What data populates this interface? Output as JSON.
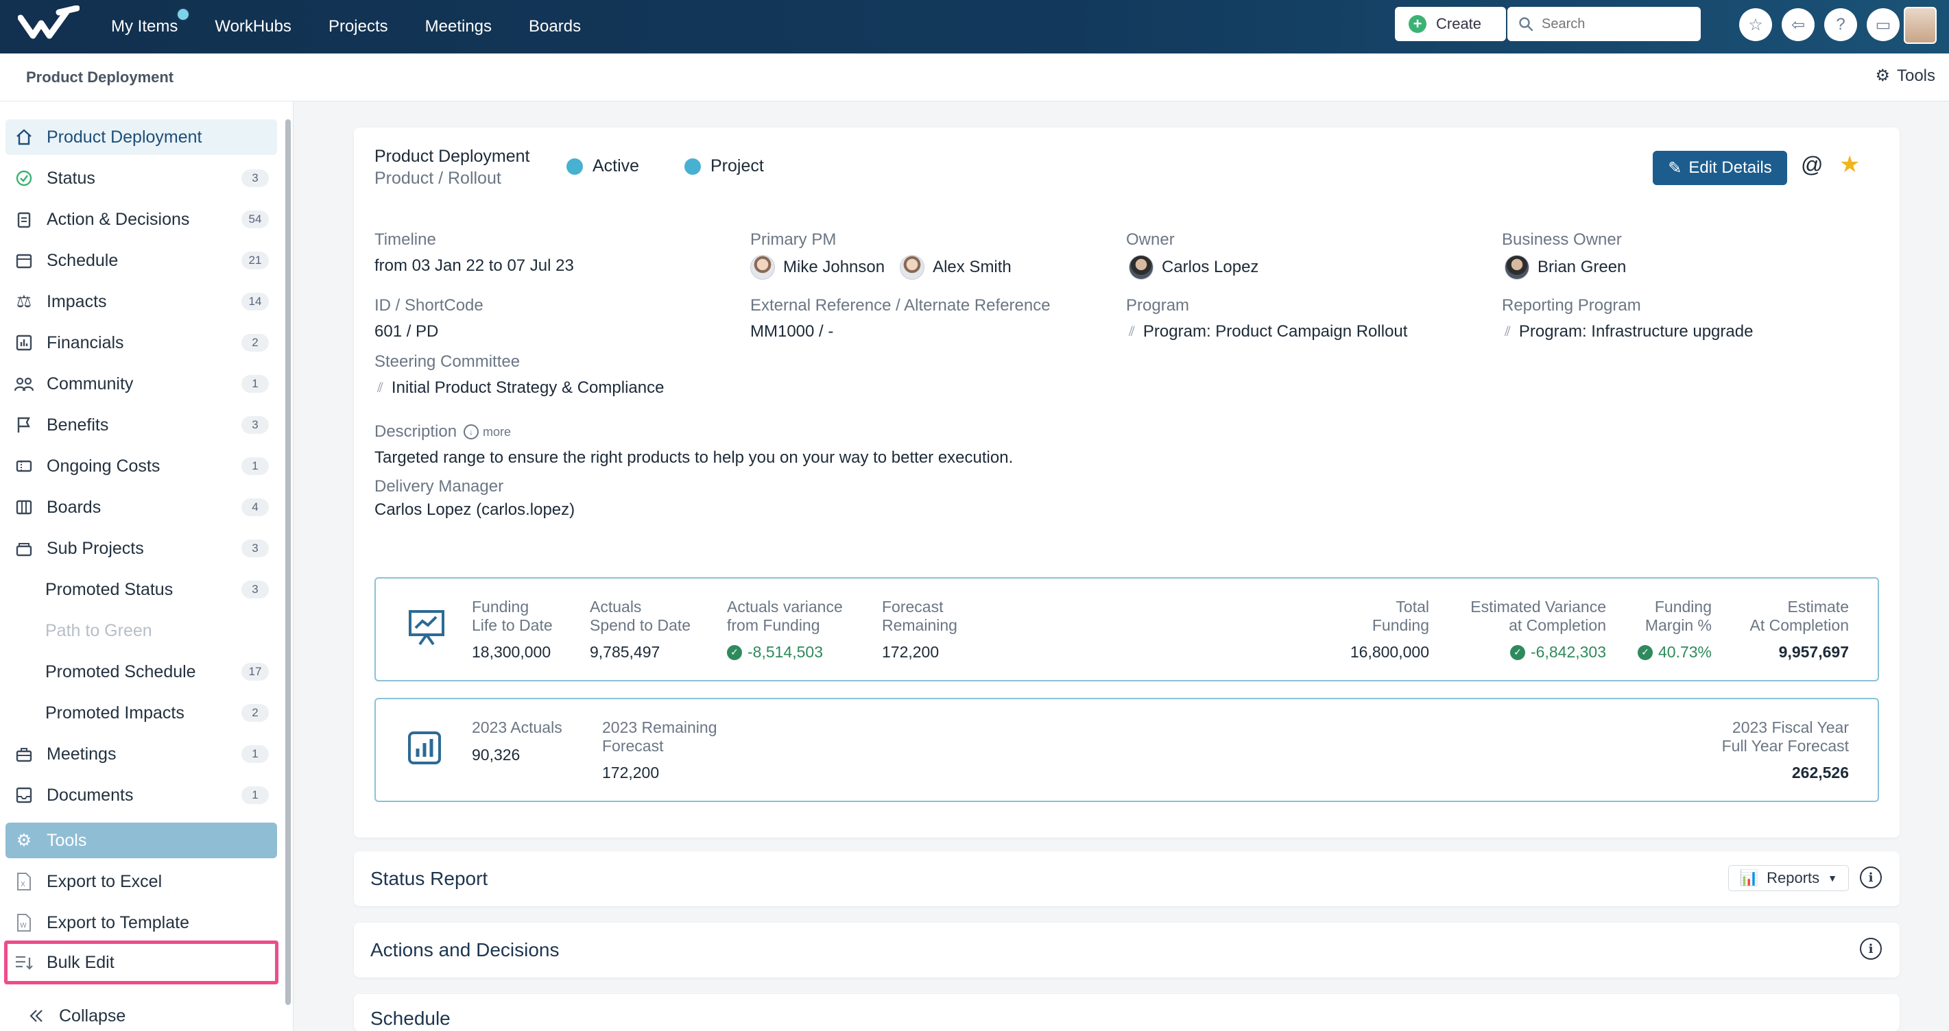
{
  "topbar": {
    "nav": [
      "My Items",
      "WorkHubs",
      "Projects",
      "Meetings",
      "Boards"
    ],
    "create_label": "Create",
    "search_placeholder": "Search"
  },
  "breadcrumb": "Product Deployment",
  "tools_label": "Tools",
  "sidebar": {
    "items": [
      {
        "label": "Product Deployment",
        "badge": ""
      },
      {
        "label": "Status",
        "badge": "3"
      },
      {
        "label": "Action & Decisions",
        "badge": "54"
      },
      {
        "label": "Schedule",
        "badge": "21"
      },
      {
        "label": "Impacts",
        "badge": "14"
      },
      {
        "label": "Financials",
        "badge": "2"
      },
      {
        "label": "Community",
        "badge": "1"
      },
      {
        "label": "Benefits",
        "badge": "3"
      },
      {
        "label": "Ongoing Costs",
        "badge": "1"
      },
      {
        "label": "Boards",
        "badge": "4"
      },
      {
        "label": "Sub Projects",
        "badge": "3"
      },
      {
        "label": "Promoted Status",
        "badge": "3"
      },
      {
        "label": "Path to Green",
        "badge": ""
      },
      {
        "label": "Promoted Schedule",
        "badge": "17"
      },
      {
        "label": "Promoted Impacts",
        "badge": "2"
      },
      {
        "label": "Meetings",
        "badge": "1"
      },
      {
        "label": "Documents",
        "badge": "1"
      }
    ],
    "tools": "Tools",
    "export_excel": "Export to Excel",
    "export_template": "Export to Template",
    "bulk_edit": "Bulk Edit",
    "collapse": "Collapse"
  },
  "project": {
    "title": "Product Deployment",
    "subtitle": "Product / Rollout",
    "status": "Active",
    "type": "Project",
    "edit_label": "Edit Details"
  },
  "fields": {
    "timeline_label": "Timeline",
    "timeline_value": "from 03 Jan 22 to 07 Jul 23",
    "pm_label": "Primary PM",
    "pm1": "Mike Johnson",
    "pm2": "Alex Smith",
    "owner_label": "Owner",
    "owner_value": "Carlos Lopez",
    "bo_label": "Business Owner",
    "bo_value": "Brian Green",
    "id_label": "ID / ShortCode",
    "id_value": "601 / PD",
    "ext_label": "External Reference / Alternate Reference",
    "ext_value": "MM1000 / -",
    "program_label": "Program",
    "program_value": "Program: Product Campaign Rollout",
    "rp_label": "Reporting Program",
    "rp_value": "Program: Infrastructure upgrade",
    "sc_label": "Steering Committee",
    "sc_value": "Initial Product Strategy & Compliance",
    "desc_label": "Description",
    "more_label": "more",
    "desc_value": "Targeted range to ensure the right products to help you on your way to better execution.",
    "dm_label": "Delivery Manager",
    "dm_value": "Carlos Lopez (carlos.lopez)"
  },
  "funding": {
    "c1_l1": "Funding",
    "c1_l2": "Life to Date",
    "c1_v": "18,300,000",
    "c2_l1": "Actuals",
    "c2_l2": "Spend to Date",
    "c2_v": "9,785,497",
    "c3_l1": "Actuals variance",
    "c3_l2": "from Funding",
    "c3_v": "-8,514,503",
    "c4_l1": "Forecast",
    "c4_l2": "Remaining",
    "c4_v": "172,200",
    "c5_l1": "Total",
    "c5_l2": "Funding",
    "c5_v": "16,800,000",
    "c6_l1": "Estimated Variance",
    "c6_l2": "at Completion",
    "c6_v": "-6,842,303",
    "c7_l1": "Funding",
    "c7_l2": "Margin %",
    "c7_v": "40.73%",
    "c8_l1": "Estimate",
    "c8_l2": "At Completion",
    "c8_v": "9,957,697"
  },
  "fiscal": {
    "a_label": "2023 Actuals",
    "a_v": "90,326",
    "r_l1": "2023 Remaining",
    "r_l2": "Forecast",
    "r_v": "172,200",
    "f_l1": "2023 Fiscal Year",
    "f_l2": "Full Year Forecast",
    "f_v": "262,526"
  },
  "sections": {
    "status_report": "Status Report",
    "reports_label": "Reports",
    "actions": "Actions and Decisions",
    "schedule": "Schedule"
  },
  "colors": {
    "topbar": "#12304f",
    "accent": "#1c5d8e",
    "status_dot": "#47b1d1",
    "highlight": "#ee4c8b"
  }
}
